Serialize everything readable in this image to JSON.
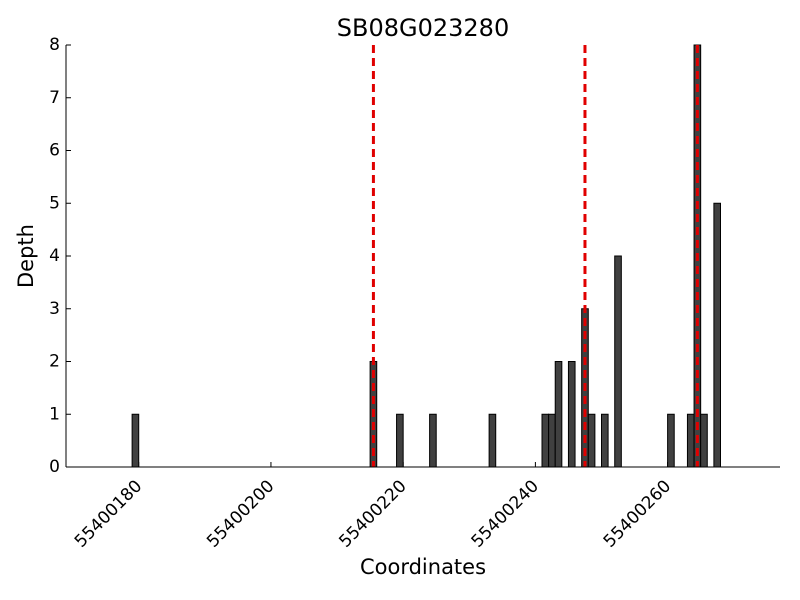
{
  "chart_data": {
    "type": "bar",
    "title": "SB08G023280",
    "x_label": "Coordinates",
    "y_label": "Depth",
    "x": [
      55400179,
      55400215,
      55400219,
      55400224,
      55400233,
      55400241,
      55400242,
      55400243,
      55400245,
      55400247,
      55400248,
      55400250,
      55400252,
      55400260,
      55400263,
      55400264,
      55400265,
      55400267
    ],
    "values": [
      1,
      2,
      1,
      1,
      1,
      1,
      1,
      2,
      2,
      3,
      1,
      1,
      4,
      1,
      1,
      8,
      1,
      5
    ],
    "color": "#404040",
    "vlines": [
      55400215.5,
      55400247.5,
      55400264.5
    ],
    "vline_color": "#e00000",
    "xlim": [
      55400169,
      55400277
    ],
    "xticks": [
      55400180,
      55400200,
      55400220,
      55400240,
      55400260
    ],
    "ylim": [
      0,
      8
    ],
    "yticks": [
      0,
      1,
      2,
      3,
      4,
      5,
      6,
      7,
      8
    ]
  }
}
